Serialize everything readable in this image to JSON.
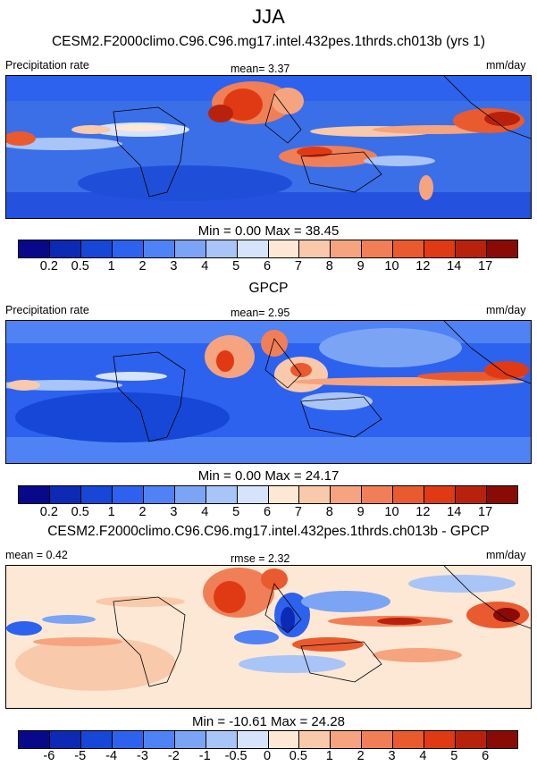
{
  "season": "JJA",
  "panels": [
    {
      "title": "CESM2.F2000climo.C96.C96.mg17.intel.432pes.1thrds.ch013b (yrs 1)",
      "left_label": "Precipitation rate",
      "center_label": "mean=  3.37",
      "right_label": "mm/day",
      "minmax": "Min =   0.00 Max =  38.45",
      "colorbar_labels": [
        "0.2",
        "0.5",
        "1",
        "2",
        "3",
        "4",
        "5",
        "6",
        "7",
        "8",
        "9",
        "10",
        "12",
        "14",
        "17"
      ],
      "colors": [
        "#08088a",
        "#0c2ab4",
        "#1747d6",
        "#2d62ee",
        "#4f82f4",
        "#7ca4f5",
        "#a9c4f7",
        "#d6e3fa",
        "#fde8d6",
        "#f9c9ab",
        "#f5a47f",
        "#f07f57",
        "#ea5a2f",
        "#e03a14",
        "#b8220c",
        "#8a0a06"
      ]
    },
    {
      "title": "GPCP",
      "left_label": "Precipitation rate",
      "center_label": "mean=  2.95",
      "right_label": "mm/day",
      "minmax": "Min =   0.00 Max =  24.17",
      "colorbar_labels": [
        "0.2",
        "0.5",
        "1",
        "2",
        "3",
        "4",
        "5",
        "6",
        "7",
        "8",
        "9",
        "10",
        "12",
        "14",
        "17"
      ],
      "colors": [
        "#08088a",
        "#0c2ab4",
        "#1747d6",
        "#2d62ee",
        "#4f82f4",
        "#7ca4f5",
        "#a9c4f7",
        "#d6e3fa",
        "#fde8d6",
        "#f9c9ab",
        "#f5a47f",
        "#f07f57",
        "#ea5a2f",
        "#e03a14",
        "#b8220c",
        "#8a0a06"
      ]
    },
    {
      "title": "CESM2.F2000climo.C96.C96.mg17.intel.432pes.1thrds.ch013b - GPCP",
      "left_label": "mean =  0.42",
      "center_label": "rmse =  2.32",
      "right_label": "mm/day",
      "minmax": "Min = -10.61 Max =  24.28",
      "colorbar_labels": [
        "-6",
        "-5",
        "-4",
        "-3",
        "-2",
        "-1",
        "-0.5",
        "0",
        "0.5",
        "1",
        "2",
        "3",
        "4",
        "5",
        "6"
      ],
      "colors": [
        "#08088a",
        "#0c2ab4",
        "#1747d6",
        "#2d62ee",
        "#4f82f4",
        "#7ca4f5",
        "#a9c4f7",
        "#d6e3fa",
        "#fde8d6",
        "#f9c9ab",
        "#f5a47f",
        "#f07f57",
        "#ea5a2f",
        "#e03a14",
        "#b8220c",
        "#8a0a06"
      ]
    }
  ],
  "chart_data": [
    {
      "type": "heatmap",
      "title": "CESM2.F2000climo.C96.C96.mg17.intel.432pes.1thrds.ch013b (yrs 1)",
      "variable": "Precipitation rate",
      "units": "mm/day",
      "mean": 3.37,
      "min": 0.0,
      "max": 38.45,
      "levels": [
        0.2,
        0.5,
        1,
        2,
        3,
        4,
        5,
        6,
        7,
        8,
        9,
        10,
        12,
        14,
        17
      ]
    },
    {
      "type": "heatmap",
      "title": "GPCP",
      "variable": "Precipitation rate",
      "units": "mm/day",
      "mean": 2.95,
      "min": 0.0,
      "max": 24.17,
      "levels": [
        0.2,
        0.5,
        1,
        2,
        3,
        4,
        5,
        6,
        7,
        8,
        9,
        10,
        12,
        14,
        17
      ]
    },
    {
      "type": "heatmap",
      "title": "CESM2.F2000climo.C96.C96.mg17.intel.432pes.1thrds.ch013b - GPCP",
      "units": "mm/day",
      "mean": 0.42,
      "rmse": 2.32,
      "min": -10.61,
      "max": 24.28,
      "levels": [
        -6,
        -5,
        -4,
        -3,
        -2,
        -1,
        -0.5,
        0,
        0.5,
        1,
        2,
        3,
        4,
        5,
        6
      ]
    }
  ]
}
